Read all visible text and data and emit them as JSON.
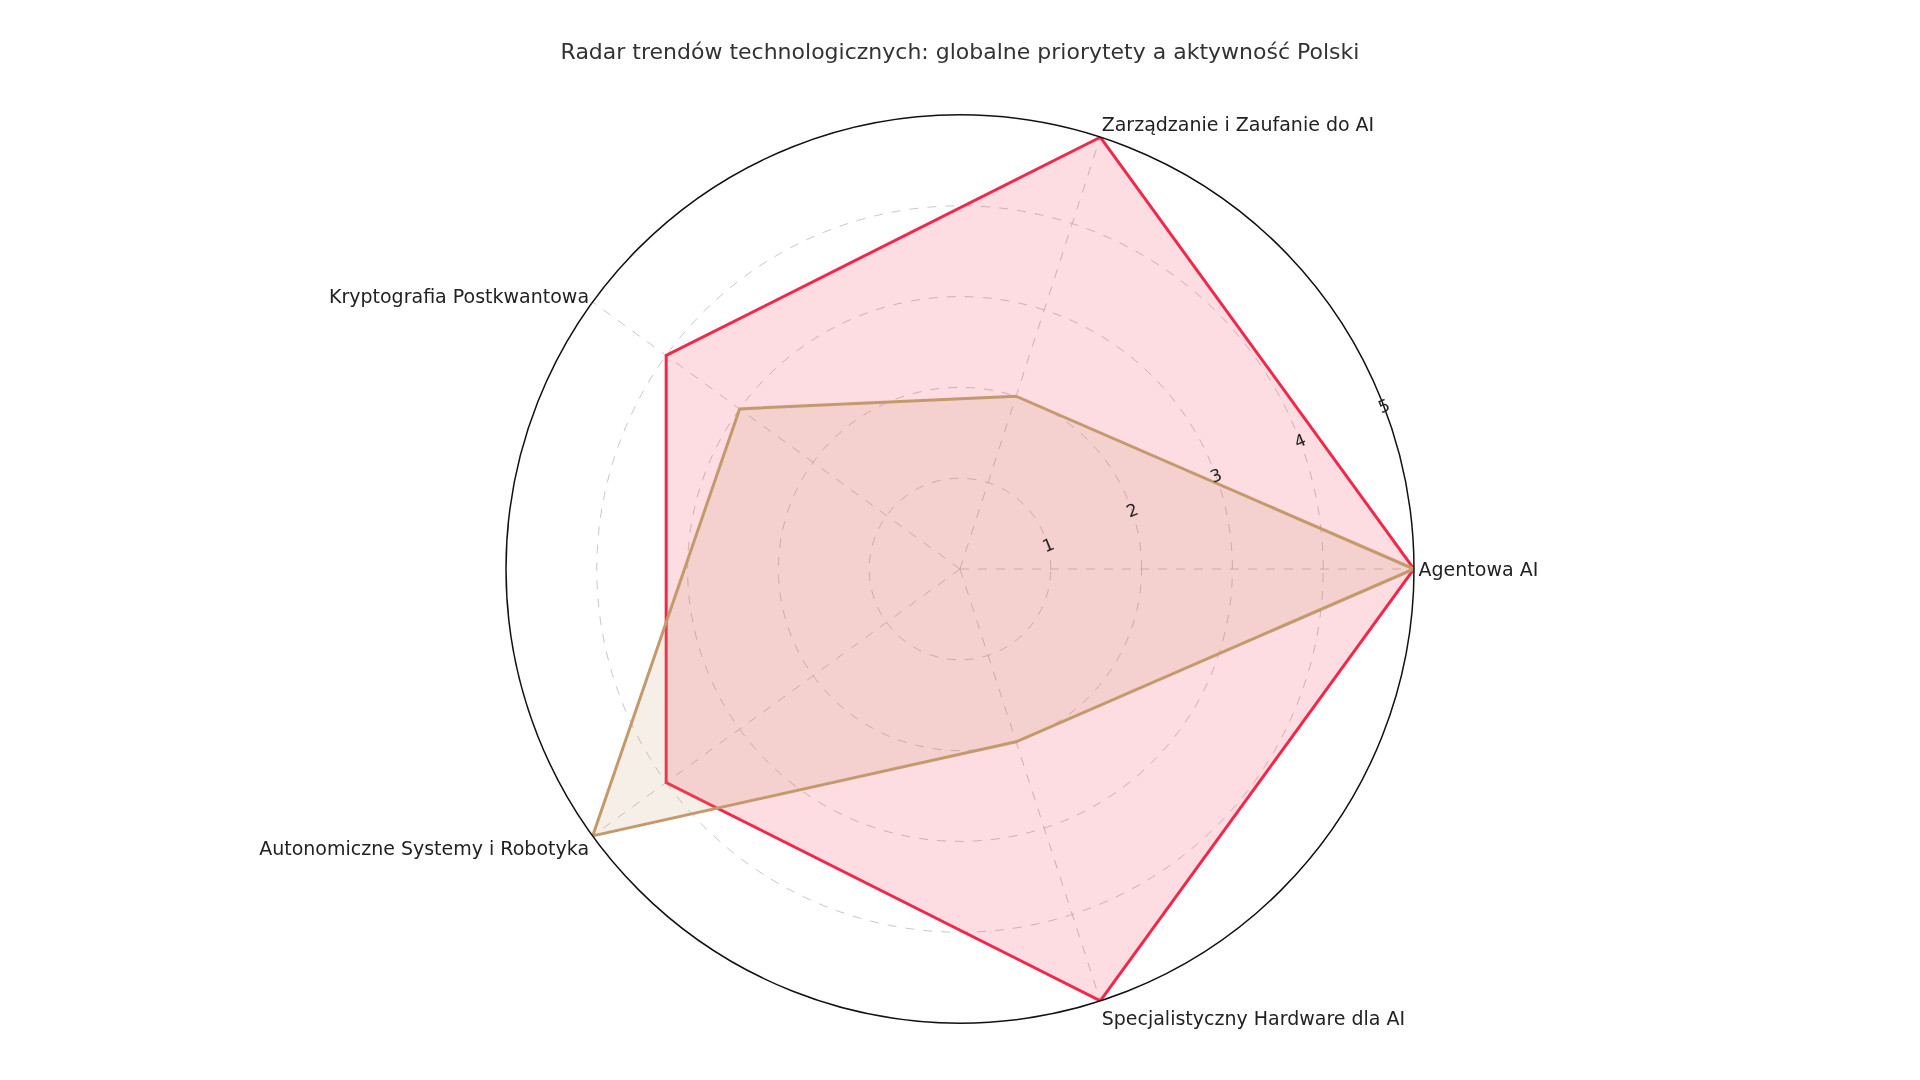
{
  "chart_data": {
    "type": "radar",
    "title": "Radar trendów technologicznych: globalne priorytety a aktywność Polski",
    "categories": [
      "Zarządzanie i Zaufanie do AI",
      "Agentowa AI",
      "Specjalistyczny Hardware dla AI",
      "Autonomiczne Systemy i Robotyka",
      "Kryptografia Postkwantowa"
    ],
    "series": [
      {
        "color": "#f0284a",
        "values": [
          5,
          5,
          5,
          4,
          4
        ]
      },
      {
        "color": "#c49a6c",
        "values": [
          2,
          5,
          2,
          5,
          3
        ]
      }
    ],
    "ylim": [
      0,
      5
    ],
    "yticks": [
      1,
      2,
      3,
      4,
      5
    ],
    "grid": true,
    "marker": "none",
    "line_style": "solid"
  }
}
